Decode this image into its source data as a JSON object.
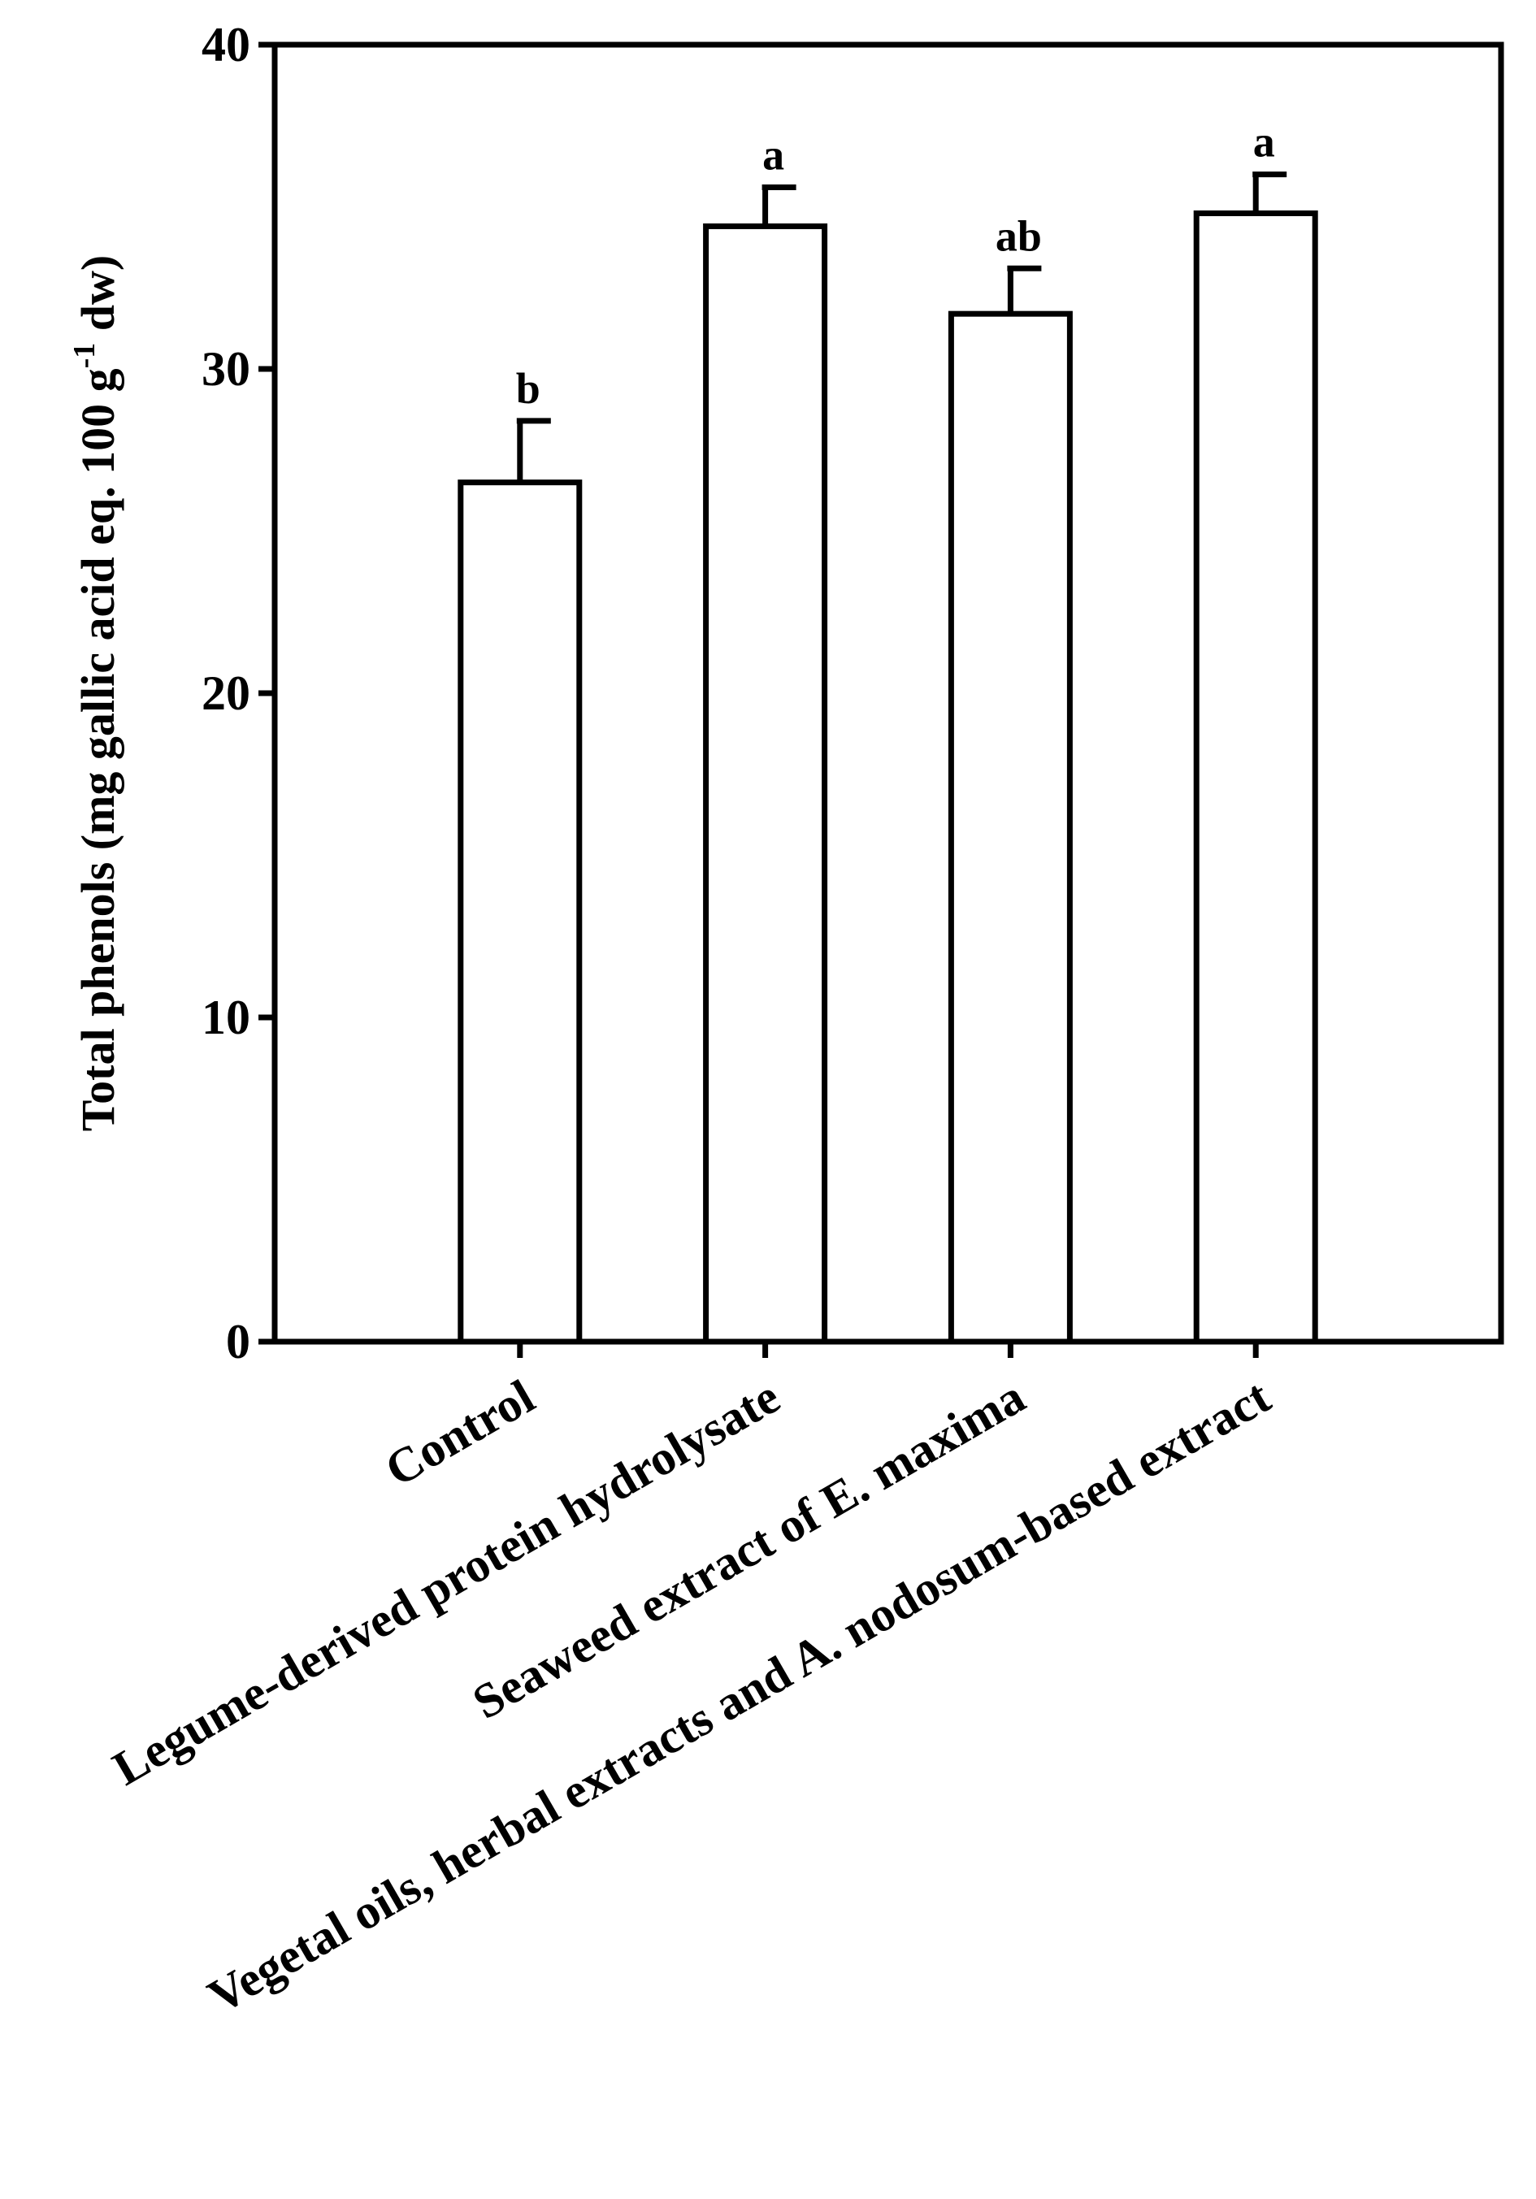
{
  "chart_data": {
    "type": "bar",
    "ylabel": [
      "Total phenols (mg gallic acid eq. 100 g",
      "-1",
      " dw)"
    ],
    "categories": [
      "Control",
      "Legume-derived protein hydrolysate",
      "Seaweed extract of E. maxima",
      "Vegetal oils, herbal extracts  and A. nodosum-based extract"
    ],
    "values": [
      26.5,
      34.4,
      31.7,
      34.8
    ],
    "errors": [
      1.9,
      1.2,
      1.4,
      1.2
    ],
    "annotations": [
      "b",
      "a",
      "ab",
      "a"
    ],
    "color": "#ffffff",
    "ylim": [
      0,
      40
    ],
    "yticks": [
      0,
      10,
      20,
      30,
      40
    ],
    "grid": false
  }
}
